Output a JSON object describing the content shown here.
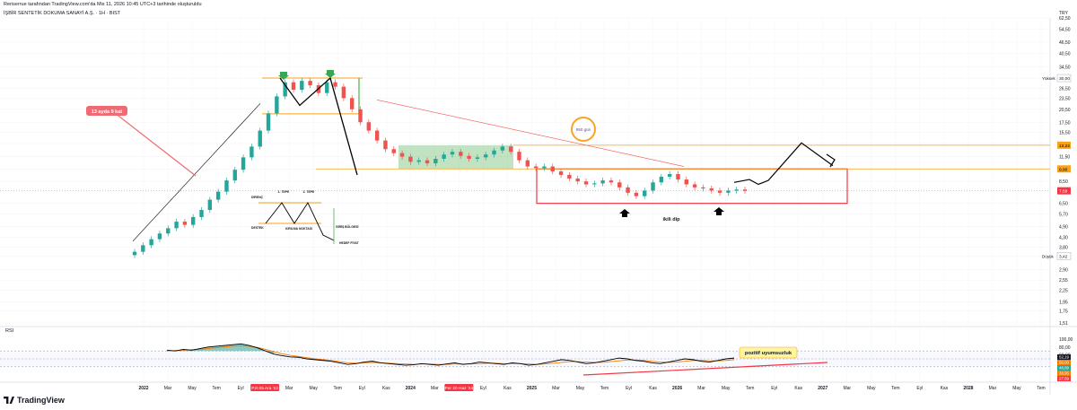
{
  "header": {
    "published_note": "Reriserrue tarafından TradingView.com'da Mis 11, 2026 10:45 UTC+3 tarihinde oluşturuldu",
    "symbol_line": "İŞBİR SENTETİK DOKUMA SANAYİ A.Ş. · 1H · BIST"
  },
  "branding": {
    "logo_text": "TradingView"
  },
  "colors": {
    "candle_up": "#26a69a",
    "candle_down": "#ef5350",
    "level_orange": "#f7a21b",
    "box_red": "#f23645",
    "zone_green": "#4caf50",
    "rsi_line": "#000000",
    "rsi_ma": "#f57c00",
    "annotation_red": "#f06a73",
    "circle_orange": "#f5a623",
    "highlight_yellow": "#fff59d"
  },
  "chart_data": [
    {
      "type": "candlestick",
      "currency_label": "TRY",
      "y_scale": "log",
      "ylim": [
        1.51,
        62.5
      ],
      "price_axis_ticks": [
        "62,50",
        "54,50",
        "46,50",
        "40,50",
        "34,50",
        "30,00",
        "26,50",
        "23,50",
        "20,50",
        "17,50",
        "15,50",
        "13,50",
        "11,50",
        "9,90",
        "8,50",
        "7,50",
        "6,50",
        "5,70",
        "4,90",
        "4,30",
        "3,80",
        "3,42",
        "2,90",
        "2,55",
        "2,25",
        "1,95",
        "1,75",
        "1,51"
      ],
      "price_badges": [
        {
          "label": "Yüksek",
          "value": "30,00"
        },
        {
          "label": "",
          "value": "13,22"
        },
        {
          "label": "",
          "value": "9,90"
        },
        {
          "label": "",
          "value": "7,58"
        },
        {
          "label": "Düşük",
          "value": "3,42"
        }
      ],
      "x_axis_ticks": [
        "2022",
        "Mar",
        "May",
        "Tem",
        "Eyl",
        "Pzt 05 Ara '22",
        "Mar",
        "May",
        "Tem",
        "Eyl",
        "Kas",
        "2024",
        "Mar",
        "Per 20 Haz '24",
        "Eyl",
        "Kas",
        "2025",
        "Mar",
        "May",
        "Tem",
        "Eyl",
        "Kas",
        "2026",
        "Mar",
        "May",
        "Tem",
        "Eyl",
        "Kas",
        "2027",
        "Mar",
        "May",
        "Tem",
        "Eyl",
        "Kas",
        "2028",
        "Mar",
        "May",
        "Tem"
      ],
      "series": [
        {
          "name": "",
          "close": [
            3.6,
            3.9,
            4.2,
            4.5,
            4.8,
            5.2,
            5.0,
            5.5,
            6.0,
            6.8,
            7.5,
            8.6,
            9.8,
            11.4,
            13.0,
            15.8,
            19.5,
            24.0,
            28.5,
            26.0,
            29.0,
            27.5,
            25.0,
            28.5,
            27.0,
            23.5,
            20.5,
            17.5,
            15.8,
            14.0,
            12.6,
            12.0,
            11.5,
            10.8,
            11.0,
            10.6,
            11.2,
            11.8,
            12.2,
            11.6,
            11.2,
            11.4,
            11.8,
            12.4,
            13.0,
            12.2,
            11.0,
            10.2,
            10.0,
            10.2,
            9.6,
            9.2,
            8.8,
            8.5,
            8.2,
            8.3,
            8.6,
            8.4,
            7.9,
            7.4,
            7.1,
            7.6,
            8.4,
            9.0,
            9.3,
            8.7,
            8.2,
            7.9,
            7.8,
            7.6,
            7.4,
            7.6,
            7.7,
            7.58
          ]
        }
      ],
      "levels": [
        {
          "value": 30.0
        },
        {
          "value": 19.4
        },
        {
          "value": 13.22
        },
        {
          "value": 9.9
        }
      ],
      "annotations": [
        {
          "text": "13 ayda 9 kat"
        },
        {
          "text": "950 gün"
        },
        {
          "text": "ikili dip"
        }
      ],
      "legend_diagram": {
        "labels": [
          "1. TEPE",
          "2. TEPE",
          "DİRENÇ",
          "DESTEK",
          "KIRILMA NOKTASI",
          "GİRİŞ BÖLGESİ",
          "HEDEF FİYAT"
        ]
      }
    },
    {
      "type": "line",
      "title": "RSI",
      "ylim": [
        0,
        100
      ],
      "rsi_axis_ticks": [
        "100,00",
        "80,00",
        "60,00",
        "40,00",
        "20,00"
      ],
      "rsi_badges": [
        "52,19",
        "50,00",
        "48,89",
        "38,95",
        "27,59"
      ],
      "series": [
        {
          "name": "",
          "values": [
            72,
            70,
            74,
            72,
            76,
            80,
            82,
            84,
            86,
            88,
            84,
            78,
            70,
            62,
            58,
            55,
            54,
            50,
            48,
            46,
            44,
            40,
            36,
            38,
            42,
            44,
            40,
            38,
            36,
            34,
            35,
            38,
            36,
            34,
            37,
            40,
            36,
            38,
            42,
            40,
            38,
            36,
            40,
            38,
            34,
            36,
            40,
            44,
            48,
            46,
            42,
            38,
            40,
            44,
            48,
            52,
            50,
            46,
            44,
            40,
            38,
            42,
            46,
            50,
            48,
            44,
            42,
            46,
            50,
            52
          ]
        },
        {
          "name": "",
          "values": [
            70,
            71,
            72,
            73,
            74,
            76,
            78,
            80,
            82,
            83,
            82,
            79,
            74,
            68,
            63,
            59,
            56,
            53,
            50,
            48,
            46,
            43,
            40,
            39,
            40,
            41,
            40,
            39,
            38,
            37,
            36,
            37,
            37,
            36,
            36,
            37,
            37,
            37,
            38,
            39,
            39,
            38,
            38,
            38,
            37,
            36,
            37,
            39,
            41,
            43,
            43,
            42,
            41,
            41,
            43,
            45,
            47,
            47,
            46,
            44,
            42,
            41,
            42,
            44,
            46,
            46,
            45,
            45,
            46,
            48
          ]
        }
      ],
      "annotations": [
        {
          "text": "pozitif uyumsuzluk"
        }
      ]
    }
  ]
}
